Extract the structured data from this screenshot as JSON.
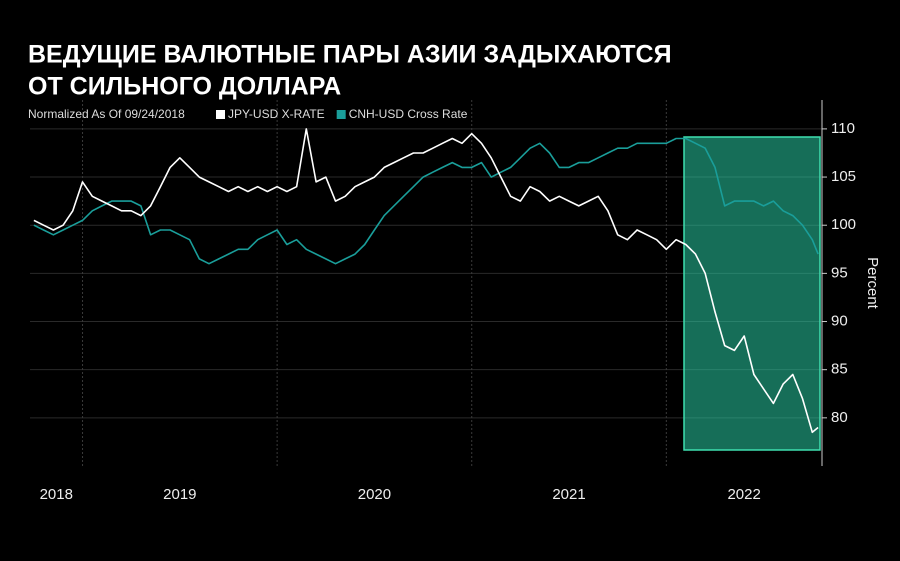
{
  "chart_data": {
    "type": "line",
    "title": [
      "ВЕДУЩИЕ ВАЛЮТНЫЕ ПАРЫ АЗИИ ЗАДЫХАЮТСЯ",
      "ОТ СИЛЬНОГО ДОЛЛАРА"
    ],
    "subtitle": "Normalized As Of 09/24/2018",
    "y_axis_label": "Percent",
    "x": [
      2018.75,
      2018.8,
      2018.85,
      2018.9,
      2018.95,
      2019.0,
      2019.05,
      2019.1,
      2019.15,
      2019.2,
      2019.25,
      2019.3,
      2019.35,
      2019.4,
      2019.45,
      2019.5,
      2019.55,
      2019.6,
      2019.65,
      2019.7,
      2019.75,
      2019.8,
      2019.85,
      2019.9,
      2019.95,
      2020.0,
      2020.05,
      2020.1,
      2020.15,
      2020.2,
      2020.25,
      2020.3,
      2020.35,
      2020.4,
      2020.45,
      2020.5,
      2020.55,
      2020.6,
      2020.65,
      2020.7,
      2020.75,
      2020.8,
      2020.85,
      2020.9,
      2020.95,
      2021.0,
      2021.05,
      2021.1,
      2021.15,
      2021.2,
      2021.25,
      2021.3,
      2021.35,
      2021.4,
      2021.45,
      2021.5,
      2021.55,
      2021.6,
      2021.65,
      2021.7,
      2021.75,
      2021.8,
      2021.85,
      2021.9,
      2021.95,
      2022.0,
      2022.05,
      2022.1,
      2022.15,
      2022.2,
      2022.25,
      2022.3,
      2022.35,
      2022.4,
      2022.45,
      2022.5,
      2022.55,
      2022.6,
      2022.65,
      2022.7,
      2022.75,
      2022.78
    ],
    "series": [
      {
        "name": "JPY-USD X-RATE",
        "color": "#ffffff",
        "values": [
          100.5,
          100,
          99.5,
          100,
          101.5,
          104.5,
          103,
          102.5,
          102,
          101.5,
          101.5,
          101,
          102,
          104,
          106,
          107,
          106,
          105,
          104.5,
          104,
          103.5,
          104,
          103.5,
          104,
          103.5,
          104,
          103.5,
          104,
          110,
          104.5,
          105,
          102.5,
          103,
          104,
          104.5,
          105,
          106,
          106.5,
          107,
          107.5,
          107.5,
          108,
          108.5,
          109,
          108.5,
          109.5,
          108.5,
          107,
          105,
          103,
          102.5,
          104,
          103.5,
          102.5,
          103,
          102.5,
          102,
          102.5,
          103,
          101.5,
          99,
          98.5,
          99.5,
          99,
          98.5,
          97.5,
          98.5,
          98,
          97,
          95,
          91,
          87.5,
          87,
          88.5,
          84.5,
          83,
          81.5,
          83.5,
          84.5,
          82,
          78.5,
          79
        ]
      },
      {
        "name": "CNH-USD Cross Rate",
        "color": "#1a9e9a",
        "values": [
          100,
          99.5,
          99,
          99.5,
          100,
          100.5,
          101.5,
          102,
          102.5,
          102.5,
          102.5,
          102,
          99,
          99.5,
          99.5,
          99,
          98.5,
          96.5,
          96,
          96.5,
          97,
          97.5,
          97.5,
          98.5,
          99,
          99.5,
          98,
          98.5,
          97.5,
          97,
          96.5,
          96,
          96.5,
          97,
          98,
          99.5,
          101,
          102,
          103,
          104,
          105,
          105.5,
          106,
          106.5,
          106,
          106,
          106.5,
          105,
          105.5,
          106,
          107,
          108,
          108.5,
          107.5,
          106,
          106,
          106.5,
          106.5,
          107,
          107.5,
          108,
          108,
          108.5,
          108.5,
          108.5,
          108.5,
          109,
          109,
          108.5,
          108,
          106,
          102,
          102.5,
          102.5,
          102.5,
          102,
          102.5,
          101.5,
          101,
          100,
          98.5,
          97
        ]
      }
    ],
    "xlim": [
      2018.73,
      2022.8
    ],
    "xticks": [
      2018,
      2019,
      2020,
      2021,
      2022
    ],
    "ylim": [
      75,
      113
    ],
    "yticks": [
      80,
      85,
      90,
      95,
      100,
      105,
      110
    ],
    "grid": true
  }
}
